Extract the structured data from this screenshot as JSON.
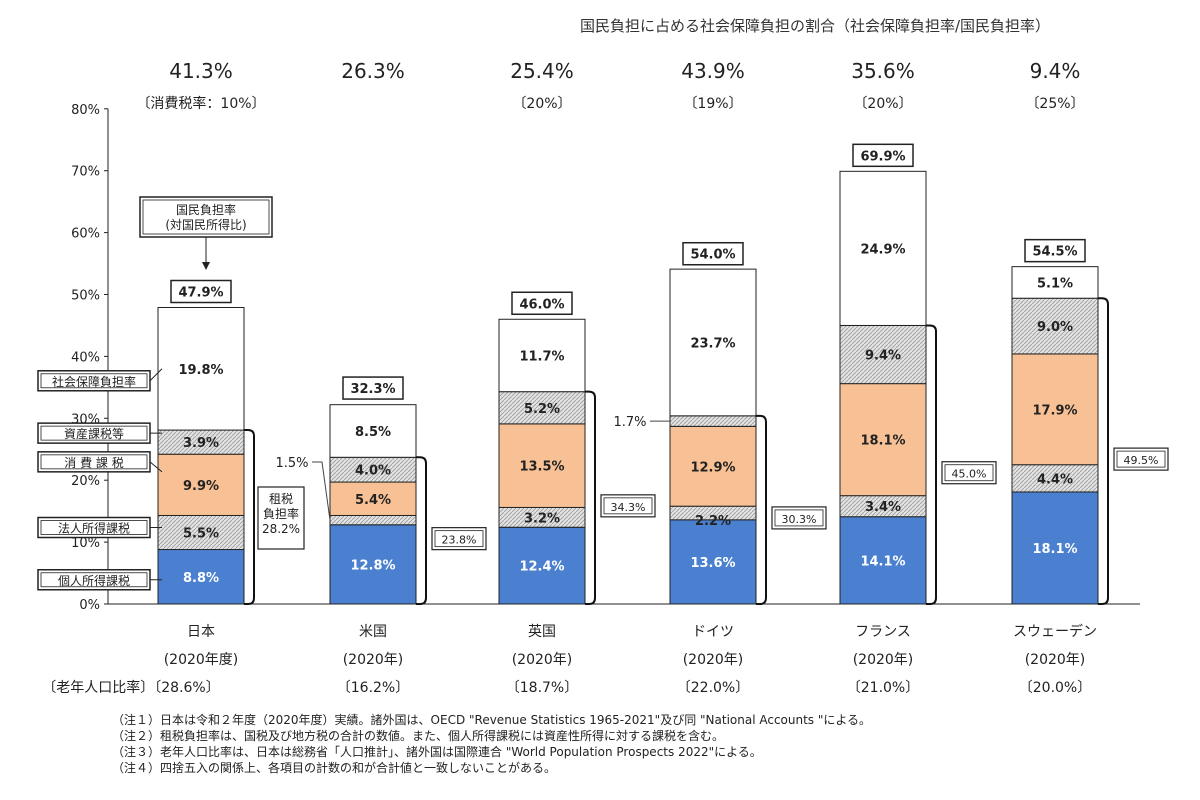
{
  "chart_data": {
    "type": "bar",
    "subtitle": "国民負担に占める社会保障負担の割合（社会保障負担率/国民負担率）",
    "ylim": [
      0,
      80
    ],
    "yticks": [
      "0%",
      "10%",
      "20%",
      "30%",
      "40%",
      "50%",
      "60%",
      "70%",
      "80%"
    ],
    "legend_labels": {
      "total": "国民負担率\n(対国民所得比)",
      "social": "社会保障負担率",
      "asset": "資産課税等",
      "consumption": "消 費 課 税",
      "corporate": "法人所得課税",
      "personal": "個人所得課税",
      "tax_rate": "租税\n負担率\n28.2%"
    },
    "colors": {
      "personal": "#4a80cf",
      "corporate": "#d9d9d9",
      "consumption": "#f8c195",
      "asset": "#d9d9d9",
      "social": "#ffffff",
      "edge": "#222222"
    },
    "countries": [
      {
        "name": "日本",
        "year": "(2020年度)",
        "aging": "〔老年人口比率〕〔28.6%〕",
        "ss_ratio": "41.3%",
        "vat": "〔消費税率：10%〕",
        "personal": 8.8,
        "corporate": 5.5,
        "consumption": 9.9,
        "asset": 3.9,
        "social": 19.8,
        "total": 47.9,
        "labels": {
          "personal": "8.8%",
          "corporate": "5.5%",
          "consumption": "9.9%",
          "asset": "3.9%",
          "social": "19.8%",
          "total": "47.9%"
        },
        "tax_total": "28.2%"
      },
      {
        "name": "米国",
        "year": "(2020年)",
        "aging": "〔16.2%〕",
        "ss_ratio": "26.3%",
        "vat": "",
        "personal": 12.8,
        "corporate": 1.5,
        "consumption": 5.4,
        "asset": 4.0,
        "social": 8.5,
        "total": 32.3,
        "labels": {
          "personal": "12.8%",
          "corporate": "1.5%",
          "consumption": "5.4%",
          "asset": "4.0%",
          "social": "8.5%",
          "total": "32.3%"
        },
        "tax_total": "23.8%"
      },
      {
        "name": "英国",
        "year": "(2020年)",
        "aging": "〔18.7%〕",
        "ss_ratio": "25.4%",
        "vat": "〔20%〕",
        "personal": 12.4,
        "corporate": 3.2,
        "consumption": 13.5,
        "asset": 5.2,
        "social": 11.7,
        "total": 46.0,
        "labels": {
          "personal": "12.4%",
          "corporate": "3.2%",
          "consumption": "13.5%",
          "asset": "5.2%",
          "social": "11.7%",
          "total": "46.0%"
        },
        "tax_total": "34.3%"
      },
      {
        "name": "ドイツ",
        "year": "(2020年)",
        "aging": "〔22.0%〕",
        "ss_ratio": "43.9%",
        "vat": "〔19%〕",
        "personal": 13.6,
        "corporate": 2.2,
        "consumption": 12.9,
        "asset": 1.7,
        "social": 23.7,
        "total": 54.0,
        "labels": {
          "personal": "13.6%",
          "corporate": "2.2%",
          "consumption": "12.9%",
          "asset": "1.7%",
          "social": "23.7%",
          "total": "54.0%"
        },
        "tax_total": "30.3%"
      },
      {
        "name": "フランス",
        "year": "(2020年)",
        "aging": "〔21.0%〕",
        "ss_ratio": "35.6%",
        "vat": "〔20%〕",
        "personal": 14.1,
        "corporate": 3.4,
        "consumption": 18.1,
        "asset": 9.4,
        "social": 24.9,
        "total": 69.9,
        "labels": {
          "personal": "14.1%",
          "corporate": "3.4%",
          "consumption": "18.1%",
          "asset": "9.4%",
          "social": "24.9%",
          "total": "69.9%"
        },
        "tax_total": "45.0%"
      },
      {
        "name": "スウェーデン",
        "year": "(2020年)",
        "aging": "〔20.0%〕",
        "ss_ratio": "9.4%",
        "vat": "〔25%〕",
        "personal": 18.1,
        "corporate": 4.4,
        "consumption": 17.9,
        "asset": 9.0,
        "social": 5.1,
        "total": 54.5,
        "labels": {
          "personal": "18.1%",
          "corporate": "4.4%",
          "consumption": "17.9%",
          "asset": "9.0%",
          "social": "5.1%",
          "total": "54.5%"
        },
        "tax_total": "49.5%"
      }
    ]
  },
  "notes": [
    "（注１）日本は令和２年度（2020年度）実績。諸外国は、OECD \"Revenue Statistics 1965-2021\"及び同 \"National Accounts \"による。",
    "（注２）租税負担率は、国税及び地方税の合計の数値。また、個人所得課税には資産性所得に対する課税を含む。",
    "（注３）老年人口比率は、日本は総務省「人口推計」、諸外国は国際連合 \"World Population Prospects 2022\"による。",
    "（注４）四捨五入の関係上、各項目の計数の和が合計値と一致しないことがある。"
  ]
}
